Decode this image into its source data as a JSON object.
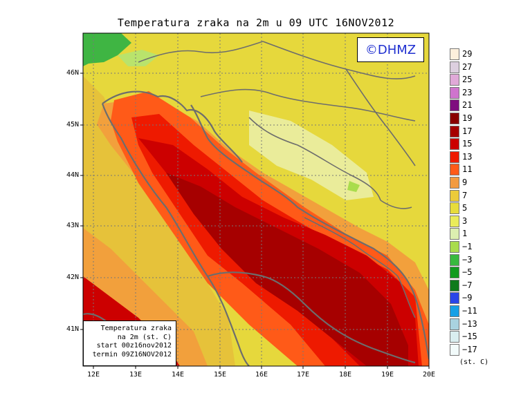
{
  "title": "Temperatura zraka na 2m u 09 UTC 16NOV2012",
  "logo": "©DHMZ",
  "info_box": {
    "line1": "Temperatura zraka",
    "line2": "na 2m (st. C)",
    "line3": "start 00z16nov2012",
    "line4": "termin 09Z16NOV2012"
  },
  "axes": {
    "lat_labels": [
      "46N",
      "45N",
      "44N",
      "43N",
      "42N",
      "41N"
    ],
    "lon_labels": [
      "12E",
      "13E",
      "14E",
      "15E",
      "16E",
      "17E",
      "18E",
      "19E",
      "20E"
    ]
  },
  "legend": {
    "units": "(st. C)",
    "labels": [
      "29",
      "27",
      "25",
      "23",
      "21",
      "19",
      "17",
      "15",
      "13",
      "11",
      "9",
      "7",
      "5",
      "3",
      "1",
      "−1",
      "−3",
      "−5",
      "−7",
      "−9",
      "−11",
      "−13",
      "−15",
      "−17"
    ],
    "colors": [
      "#fdf0dc",
      "#dccfdf",
      "#e0a9d8",
      "#cf74cd",
      "#7f0d7f",
      "#8a0000",
      "#a60000",
      "#cc0000",
      "#ee1a00",
      "#ff5a18",
      "#f29a40",
      "#eccb3a",
      "#e7dc3c",
      "#eaec5a",
      "#dcefb0",
      "#a9dc4c",
      "#38b93e",
      "#119b1e",
      "#0f7a1c",
      "#2a46e8",
      "#17a0e6",
      "#a9d3e0",
      "#d9eef0",
      "#f2fbfb"
    ]
  }
}
